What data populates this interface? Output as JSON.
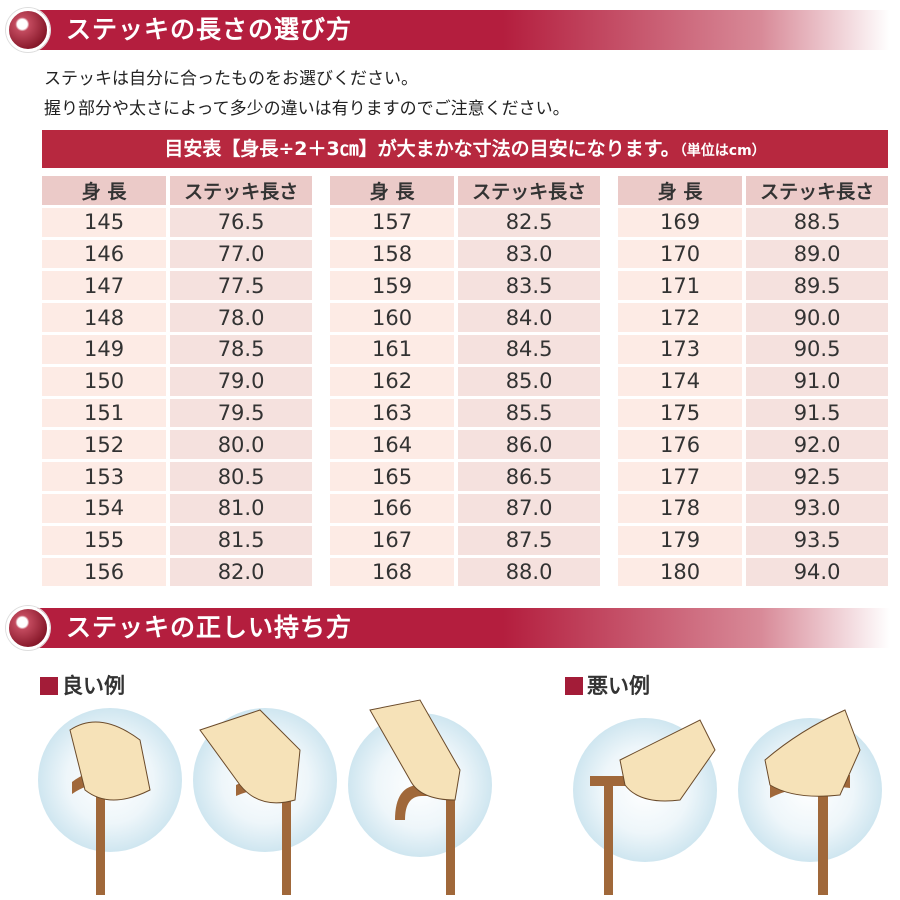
{
  "section1": {
    "title": "ステッキの長さの選び方",
    "lines": [
      "ステッキは自分に合ったものをお選びください。",
      "握り部分や太さによって多少の違いは有りますのでご注意ください。"
    ]
  },
  "table": {
    "title": "目安表【身長÷2＋3㎝】が大まかな寸法の目安になります。",
    "unit": "（単位はcm）",
    "headers": [
      "身 長",
      "ステッキ長さ"
    ],
    "groups": [
      [
        [
          "145",
          "76.5"
        ],
        [
          "146",
          "77.0"
        ],
        [
          "147",
          "77.5"
        ],
        [
          "148",
          "78.0"
        ],
        [
          "149",
          "78.5"
        ],
        [
          "150",
          "79.0"
        ],
        [
          "151",
          "79.5"
        ],
        [
          "152",
          "80.0"
        ],
        [
          "153",
          "80.5"
        ],
        [
          "154",
          "81.0"
        ],
        [
          "155",
          "81.5"
        ],
        [
          "156",
          "82.0"
        ]
      ],
      [
        [
          "157",
          "82.5"
        ],
        [
          "158",
          "83.0"
        ],
        [
          "159",
          "83.5"
        ],
        [
          "160",
          "84.0"
        ],
        [
          "161",
          "84.5"
        ],
        [
          "162",
          "85.0"
        ],
        [
          "163",
          "85.5"
        ],
        [
          "164",
          "86.0"
        ],
        [
          "165",
          "86.5"
        ],
        [
          "166",
          "87.0"
        ],
        [
          "167",
          "87.5"
        ],
        [
          "168",
          "88.0"
        ]
      ],
      [
        [
          "169",
          "88.5"
        ],
        [
          "170",
          "89.0"
        ],
        [
          "171",
          "89.5"
        ],
        [
          "172",
          "90.0"
        ],
        [
          "173",
          "90.5"
        ],
        [
          "174",
          "91.0"
        ],
        [
          "175",
          "91.5"
        ],
        [
          "176",
          "92.0"
        ],
        [
          "177",
          "92.5"
        ],
        [
          "178",
          "93.0"
        ],
        [
          "179",
          "93.5"
        ],
        [
          "180",
          "94.0"
        ]
      ]
    ]
  },
  "section2": {
    "title": "ステッキの正しい持ち方",
    "good": "良い例",
    "bad": "悪い例"
  },
  "colors": {
    "accent": "#b41e3e",
    "header_cell": "#ebcac8",
    "cell_left": "#fdebe5",
    "cell_right": "#f5e1de"
  }
}
